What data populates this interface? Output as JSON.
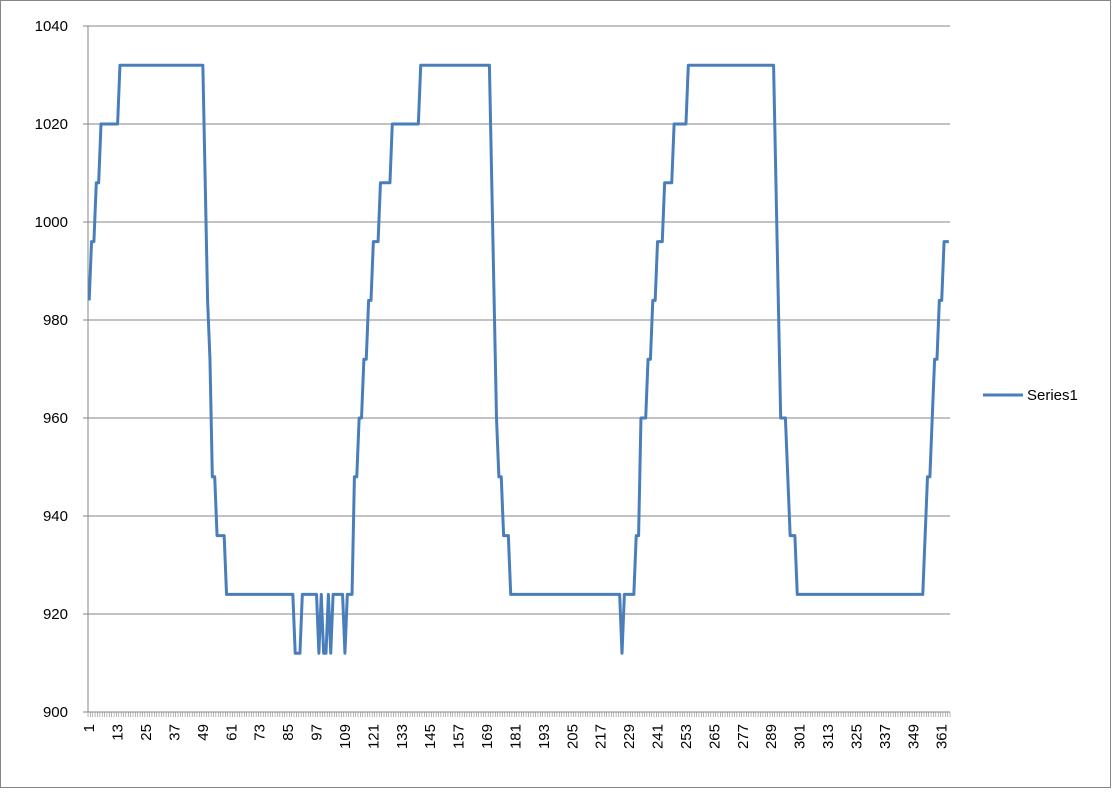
{
  "chart_data": {
    "type": "line",
    "categories": [
      1,
      null,
      null,
      null,
      null,
      null,
      null,
      null,
      null,
      null,
      null,
      null,
      13,
      null,
      null,
      null,
      null,
      null,
      null,
      null,
      null,
      null,
      null,
      null,
      25,
      null,
      null,
      null,
      null,
      null,
      null,
      null,
      null,
      null,
      null,
      null,
      37,
      null,
      null,
      null,
      null,
      null,
      null,
      null,
      null,
      null,
      null,
      null,
      49,
      null,
      null,
      null,
      null,
      null,
      null,
      null,
      null,
      null,
      null,
      null,
      61,
      null,
      null,
      null,
      null,
      null,
      null,
      null,
      null,
      null,
      null,
      null,
      73,
      null,
      null,
      null,
      null,
      null,
      null,
      null,
      null,
      null,
      null,
      null,
      85,
      null,
      null,
      null,
      null,
      null,
      null,
      null,
      null,
      null,
      null,
      null,
      97,
      null,
      null,
      null,
      null,
      null,
      null,
      null,
      null,
      null,
      null,
      null,
      109,
      null,
      null,
      null,
      null,
      null,
      null,
      null,
      null,
      null,
      null,
      null,
      121,
      null,
      null,
      null,
      null,
      null,
      null,
      null,
      null,
      null,
      null,
      null,
      133,
      null,
      null,
      null,
      null,
      null,
      null,
      null,
      null,
      null,
      null,
      null,
      145,
      null,
      null,
      null,
      null,
      null,
      null,
      null,
      null,
      null,
      null,
      null,
      157,
      null,
      null,
      null,
      null,
      null,
      null,
      null,
      null,
      null,
      null,
      null,
      169,
      null,
      null,
      null,
      null,
      null,
      null,
      null,
      null,
      null,
      null,
      null,
      181,
      null,
      null,
      null,
      null,
      null,
      null,
      null,
      null,
      null,
      null,
      null,
      193,
      null,
      null,
      null,
      null,
      null,
      null,
      null,
      null,
      null,
      null,
      null,
      205,
      null,
      null,
      null,
      null,
      null,
      null,
      null,
      null,
      null,
      null,
      null,
      217,
      null,
      null,
      null,
      null,
      null,
      null,
      null,
      null,
      null,
      null,
      null,
      229,
      null,
      null,
      null,
      null,
      null,
      null,
      null,
      null,
      null,
      null,
      null,
      241,
      null,
      null,
      null,
      null,
      null,
      null,
      null,
      null,
      null,
      null,
      null,
      253,
      null,
      null,
      null,
      null,
      null,
      null,
      null,
      null,
      null,
      null,
      null,
      265,
      null,
      null,
      null,
      null,
      null,
      null,
      null,
      null,
      null,
      null,
      null,
      277,
      null,
      null,
      null,
      null,
      null,
      null,
      null,
      null,
      null,
      null,
      null,
      289,
      null,
      null,
      null,
      null,
      null,
      null,
      null,
      null,
      null,
      null,
      null,
      301,
      null,
      null,
      null,
      null,
      null,
      null,
      null,
      null,
      null,
      null,
      null,
      313,
      null,
      null,
      null,
      null,
      null,
      null,
      null,
      null,
      null,
      null,
      null,
      325,
      null,
      null,
      null,
      null,
      null,
      null,
      null,
      null,
      null,
      null,
      null,
      337,
      null,
      null,
      null,
      null,
      null,
      null,
      null,
      null,
      null,
      null,
      null,
      349,
      null,
      null,
      null,
      null,
      null,
      null,
      null,
      null,
      null,
      null,
      null,
      361,
      null,
      null,
      null
    ],
    "series": [
      {
        "name": "Series1",
        "color": "#4a7ebb",
        "values": [
          984,
          996,
          996,
          1008,
          1008,
          1020,
          1020,
          1020,
          1020,
          1020,
          1020,
          1020,
          1020,
          1032,
          1032,
          1032,
          1032,
          1032,
          1032,
          1032,
          1032,
          1032,
          1032,
          1032,
          1032,
          1032,
          1032,
          1032,
          1032,
          1032,
          1032,
          1032,
          1032,
          1032,
          1032,
          1032,
          1032,
          1032,
          1032,
          1032,
          1032,
          1032,
          1032,
          1032,
          1032,
          1032,
          1032,
          1032,
          1032,
          1008,
          984,
          972,
          948,
          948,
          936,
          936,
          936,
          936,
          924,
          924,
          924,
          924,
          924,
          924,
          924,
          924,
          924,
          924,
          924,
          924,
          924,
          924,
          924,
          924,
          924,
          924,
          924,
          924,
          924,
          924,
          924,
          924,
          924,
          924,
          924,
          924,
          924,
          912,
          912,
          912,
          924,
          924,
          924,
          924,
          924,
          924,
          924,
          912,
          924,
          912,
          912,
          924,
          912,
          924,
          924,
          924,
          924,
          924,
          912,
          924,
          924,
          924,
          948,
          948,
          960,
          960,
          972,
          972,
          984,
          984,
          996,
          996,
          996,
          1008,
          1008,
          1008,
          1008,
          1008,
          1020,
          1020,
          1020,
          1020,
          1020,
          1020,
          1020,
          1020,
          1020,
          1020,
          1020,
          1020,
          1032,
          1032,
          1032,
          1032,
          1032,
          1032,
          1032,
          1032,
          1032,
          1032,
          1032,
          1032,
          1032,
          1032,
          1032,
          1032,
          1032,
          1032,
          1032,
          1032,
          1032,
          1032,
          1032,
          1032,
          1032,
          1032,
          1032,
          1032,
          1032,
          1032,
          1008,
          984,
          960,
          948,
          948,
          936,
          936,
          936,
          924,
          924,
          924,
          924,
          924,
          924,
          924,
          924,
          924,
          924,
          924,
          924,
          924,
          924,
          924,
          924,
          924,
          924,
          924,
          924,
          924,
          924,
          924,
          924,
          924,
          924,
          924,
          924,
          924,
          924,
          924,
          924,
          924,
          924,
          924,
          924,
          924,
          924,
          924,
          924,
          924,
          924,
          924,
          924,
          924,
          924,
          924,
          912,
          924,
          924,
          924,
          924,
          924,
          936,
          936,
          960,
          960,
          960,
          972,
          972,
          984,
          984,
          996,
          996,
          996,
          1008,
          1008,
          1008,
          1008,
          1020,
          1020,
          1020,
          1020,
          1020,
          1020,
          1032,
          1032,
          1032,
          1032,
          1032,
          1032,
          1032,
          1032,
          1032,
          1032,
          1032,
          1032,
          1032,
          1032,
          1032,
          1032,
          1032,
          1032,
          1032,
          1032,
          1032,
          1032,
          1032,
          1032,
          1032,
          1032,
          1032,
          1032,
          1032,
          1032,
          1032,
          1032,
          1032,
          1032,
          1032,
          1032,
          1032,
          1008,
          984,
          960,
          960,
          960,
          948,
          936,
          936,
          936,
          924,
          924,
          924,
          924,
          924,
          924,
          924,
          924,
          924,
          924,
          924,
          924,
          924,
          924,
          924,
          924,
          924,
          924,
          924,
          924,
          924,
          924,
          924,
          924,
          924,
          924,
          924,
          924,
          924,
          924,
          924,
          924,
          924,
          924,
          924,
          924,
          924,
          924,
          924,
          924,
          924,
          924,
          924,
          924,
          924,
          924,
          924,
          924,
          924,
          924,
          924,
          924,
          924,
          924,
          936,
          948,
          948,
          960,
          972,
          972,
          984,
          984,
          996,
          996,
          996
        ]
      }
    ],
    "ylim": [
      900,
      1040
    ],
    "yticks": [
      900,
      920,
      940,
      960,
      980,
      1000,
      1020,
      1040
    ],
    "grid": true,
    "legend": "right"
  }
}
